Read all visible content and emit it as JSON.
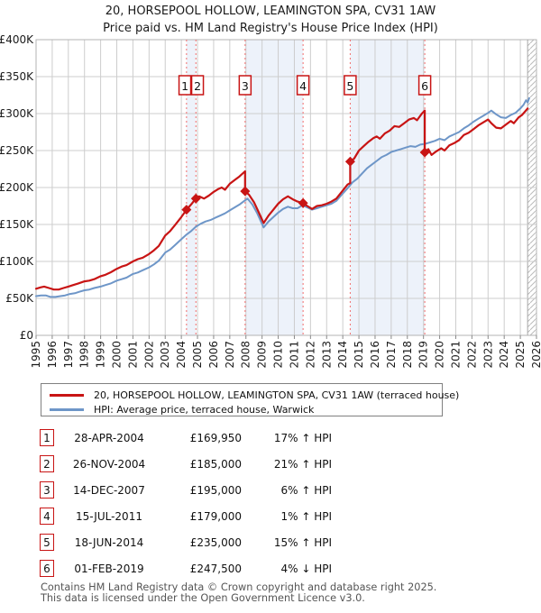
{
  "title": {
    "line1": "20, HORSEPOOL HOLLOW, LEAMINGTON SPA, CV31 1AW",
    "line2": "Price paid vs. HM Land Registry's House Price Index (HPI)"
  },
  "colors": {
    "property_line": "#c81414",
    "hpi_line": "#6e96c8",
    "band_fill": "#edf2fa",
    "dashed_line": "#f26d6d",
    "grid_line": "#cdcdcd",
    "plot_border": "#b3b3b3",
    "axis_text": "#1a1a1a",
    "box_border": "#c81414",
    "hatch_line": "#bbbbbb",
    "legend_border": "#808080",
    "footer_text": "#555555"
  },
  "chart_data": {
    "type": "line",
    "title": "20, HORSEPOOL HOLLOW, LEAMINGTON SPA, CV31 1AW — Price paid vs. HPI",
    "y_unit": "GBP thousands",
    "x_range": [
      1995,
      2026
    ],
    "y_range": [
      0,
      400
    ],
    "x_ticks": [
      1995,
      1996,
      1997,
      1998,
      1999,
      2000,
      2001,
      2002,
      2003,
      2004,
      2005,
      2006,
      2007,
      2008,
      2009,
      2010,
      2011,
      2012,
      2013,
      2014,
      2015,
      2016,
      2017,
      2018,
      2019,
      2020,
      2021,
      2022,
      2023,
      2024,
      2025,
      2026
    ],
    "y_ticks": [
      {
        "v": 0,
        "label": "£0"
      },
      {
        "v": 50,
        "label": "£50K"
      },
      {
        "v": 100,
        "label": "£100K"
      },
      {
        "v": 150,
        "label": "£150K"
      },
      {
        "v": 200,
        "label": "£200K"
      },
      {
        "v": 250,
        "label": "£250K"
      },
      {
        "v": 300,
        "label": "£300K"
      },
      {
        "v": 350,
        "label": "£350K"
      },
      {
        "v": 400,
        "label": "£400K"
      }
    ],
    "ownership_bands": [
      [
        2004.32,
        2004.9
      ],
      [
        2007.95,
        2011.54
      ],
      [
        2014.46,
        2019.08
      ]
    ],
    "future_start": 2025.45,
    "series": [
      {
        "name": "HPI: Average price, terraced house, Warwick",
        "color_key": "hpi_line",
        "width": 2,
        "points": [
          [
            1995.0,
            53
          ],
          [
            1995.3,
            54
          ],
          [
            1995.6,
            54
          ],
          [
            1995.9,
            52
          ],
          [
            1996.2,
            52
          ],
          [
            1996.5,
            53
          ],
          [
            1996.8,
            54
          ],
          [
            1997.1,
            56
          ],
          [
            1997.4,
            57
          ],
          [
            1997.7,
            59
          ],
          [
            1998.0,
            61
          ],
          [
            1998.3,
            62
          ],
          [
            1998.6,
            64
          ],
          [
            1999.0,
            66
          ],
          [
            1999.3,
            68
          ],
          [
            1999.6,
            70
          ],
          [
            2000.0,
            74
          ],
          [
            2000.3,
            76
          ],
          [
            2000.6,
            78
          ],
          [
            2001.0,
            83
          ],
          [
            2001.3,
            85
          ],
          [
            2001.6,
            88
          ],
          [
            2002.0,
            92
          ],
          [
            2002.3,
            96
          ],
          [
            2002.6,
            101
          ],
          [
            2003.0,
            112
          ],
          [
            2003.3,
            116
          ],
          [
            2003.6,
            122
          ],
          [
            2004.0,
            130
          ],
          [
            2004.3,
            136
          ],
          [
            2004.6,
            141
          ],
          [
            2004.9,
            147
          ],
          [
            2005.2,
            151
          ],
          [
            2005.5,
            154
          ],
          [
            2005.8,
            156
          ],
          [
            2006.1,
            159
          ],
          [
            2006.4,
            162
          ],
          [
            2006.7,
            165
          ],
          [
            2007.0,
            169
          ],
          [
            2007.3,
            173
          ],
          [
            2007.6,
            177
          ],
          [
            2007.9,
            182
          ],
          [
            2008.1,
            185
          ],
          [
            2008.4,
            177
          ],
          [
            2008.7,
            165
          ],
          [
            2009.1,
            146
          ],
          [
            2009.4,
            154
          ],
          [
            2009.7,
            160
          ],
          [
            2010.0,
            166
          ],
          [
            2010.3,
            171
          ],
          [
            2010.6,
            174
          ],
          [
            2010.9,
            172
          ],
          [
            2011.2,
            172
          ],
          [
            2011.5,
            176
          ],
          [
            2011.8,
            173
          ],
          [
            2012.1,
            170
          ],
          [
            2012.4,
            172
          ],
          [
            2012.7,
            174
          ],
          [
            2013.0,
            176
          ],
          [
            2013.3,
            178
          ],
          [
            2013.6,
            182
          ],
          [
            2014.0,
            192
          ],
          [
            2014.3,
            199
          ],
          [
            2014.6,
            207
          ],
          [
            2014.9,
            212
          ],
          [
            2015.2,
            219
          ],
          [
            2015.5,
            226
          ],
          [
            2015.8,
            231
          ],
          [
            2016.1,
            236
          ],
          [
            2016.4,
            241
          ],
          [
            2016.7,
            244
          ],
          [
            2017.0,
            248
          ],
          [
            2017.3,
            250
          ],
          [
            2017.6,
            252
          ],
          [
            2017.9,
            254
          ],
          [
            2018.2,
            256
          ],
          [
            2018.5,
            255
          ],
          [
            2018.8,
            258
          ],
          [
            2019.1,
            259
          ],
          [
            2019.4,
            261
          ],
          [
            2019.7,
            263
          ],
          [
            2020.0,
            266
          ],
          [
            2020.3,
            264
          ],
          [
            2020.6,
            269
          ],
          [
            2020.9,
            272
          ],
          [
            2021.2,
            275
          ],
          [
            2021.5,
            280
          ],
          [
            2021.8,
            284
          ],
          [
            2022.1,
            289
          ],
          [
            2022.4,
            293
          ],
          [
            2022.7,
            297
          ],
          [
            2023.0,
            301
          ],
          [
            2023.2,
            304
          ],
          [
            2023.5,
            299
          ],
          [
            2023.8,
            295
          ],
          [
            2024.1,
            294
          ],
          [
            2024.4,
            298
          ],
          [
            2024.7,
            301
          ],
          [
            2025.0,
            307
          ],
          [
            2025.2,
            312
          ],
          [
            2025.35,
            318
          ],
          [
            2025.45,
            315
          ],
          [
            2025.55,
            321
          ]
        ]
      },
      {
        "name": "20, HORSEPOOL HOLLOW, LEAMINGTON SPA, CV31 1AW (terraced house)",
        "color_key": "property_line",
        "width": 2.2,
        "points": [
          [
            1995.0,
            63
          ],
          [
            1995.3,
            65
          ],
          [
            1995.5,
            66
          ],
          [
            1995.8,
            64
          ],
          [
            1996.1,
            62
          ],
          [
            1996.4,
            62
          ],
          [
            1996.7,
            64
          ],
          [
            1997.0,
            66
          ],
          [
            1997.3,
            68
          ],
          [
            1997.6,
            70
          ],
          [
            1998.0,
            73
          ],
          [
            1998.3,
            74
          ],
          [
            1998.6,
            76
          ],
          [
            1999.0,
            80
          ],
          [
            1999.3,
            82
          ],
          [
            1999.6,
            85
          ],
          [
            2000.0,
            90
          ],
          [
            2000.3,
            93
          ],
          [
            2000.6,
            95
          ],
          [
            2001.0,
            100
          ],
          [
            2001.3,
            103
          ],
          [
            2001.6,
            105
          ],
          [
            2002.0,
            110
          ],
          [
            2002.3,
            115
          ],
          [
            2002.6,
            121
          ],
          [
            2003.0,
            135
          ],
          [
            2003.3,
            141
          ],
          [
            2003.6,
            149
          ],
          [
            2004.0,
            160
          ],
          [
            2004.32,
            169.95
          ],
          [
            2004.6,
            177
          ],
          [
            2004.9,
            185
          ],
          [
            2005.1,
            188
          ],
          [
            2005.4,
            185
          ],
          [
            2005.7,
            189
          ],
          [
            2006.0,
            194
          ],
          [
            2006.3,
            198
          ],
          [
            2006.5,
            200
          ],
          [
            2006.7,
            197
          ],
          [
            2007.0,
            205
          ],
          [
            2007.3,
            210
          ],
          [
            2007.6,
            215
          ],
          [
            2007.95,
            222
          ],
          [
            2007.95,
            195
          ],
          [
            2008.2,
            190
          ],
          [
            2008.5,
            180
          ],
          [
            2008.8,
            166
          ],
          [
            2009.1,
            152
          ],
          [
            2009.4,
            162
          ],
          [
            2009.7,
            170
          ],
          [
            2010.0,
            178
          ],
          [
            2010.3,
            184
          ],
          [
            2010.6,
            188
          ],
          [
            2010.9,
            184
          ],
          [
            2011.2,
            181
          ],
          [
            2011.54,
            179
          ],
          [
            2011.8,
            175
          ],
          [
            2012.1,
            171
          ],
          [
            2012.4,
            175
          ],
          [
            2012.7,
            176
          ],
          [
            2013.0,
            178
          ],
          [
            2013.3,
            181
          ],
          [
            2013.6,
            185
          ],
          [
            2014.0,
            196
          ],
          [
            2014.3,
            204
          ],
          [
            2014.46,
            206
          ],
          [
            2014.46,
            235
          ],
          [
            2014.7,
            239
          ],
          [
            2015.0,
            250
          ],
          [
            2015.3,
            256
          ],
          [
            2015.6,
            262
          ],
          [
            2015.9,
            267
          ],
          [
            2016.1,
            269
          ],
          [
            2016.3,
            266
          ],
          [
            2016.6,
            273
          ],
          [
            2016.9,
            277
          ],
          [
            2017.2,
            283
          ],
          [
            2017.5,
            282
          ],
          [
            2017.8,
            287
          ],
          [
            2018.1,
            292
          ],
          [
            2018.4,
            294
          ],
          [
            2018.6,
            291
          ],
          [
            2018.9,
            300
          ],
          [
            2019.08,
            304
          ],
          [
            2019.08,
            247.5
          ],
          [
            2019.3,
            252
          ],
          [
            2019.5,
            244
          ],
          [
            2019.8,
            249
          ],
          [
            2020.1,
            253
          ],
          [
            2020.3,
            250
          ],
          [
            2020.6,
            257
          ],
          [
            2020.9,
            260
          ],
          [
            2021.2,
            264
          ],
          [
            2021.5,
            271
          ],
          [
            2021.8,
            274
          ],
          [
            2022.1,
            279
          ],
          [
            2022.4,
            284
          ],
          [
            2022.7,
            288
          ],
          [
            2023.0,
            292
          ],
          [
            2023.2,
            287
          ],
          [
            2023.5,
            281
          ],
          [
            2023.8,
            280
          ],
          [
            2024.1,
            285
          ],
          [
            2024.4,
            290
          ],
          [
            2024.6,
            287
          ],
          [
            2024.9,
            295
          ],
          [
            2025.1,
            298
          ],
          [
            2025.3,
            303
          ],
          [
            2025.45,
            307
          ]
        ]
      }
    ],
    "transactions": [
      {
        "num": "1",
        "x": 2004.32,
        "price_k": 169.95
      },
      {
        "num": "2",
        "x": 2004.9,
        "price_k": 185
      },
      {
        "num": "3",
        "x": 2007.95,
        "price_k": 195
      },
      {
        "num": "4",
        "x": 2011.54,
        "price_k": 179
      },
      {
        "num": "5",
        "x": 2014.46,
        "price_k": 235
      },
      {
        "num": "6",
        "x": 2019.08,
        "price_k": 247.5
      }
    ],
    "legend_position": "below"
  },
  "legend": {
    "items": [
      {
        "label": "20, HORSEPOOL HOLLOW, LEAMINGTON SPA, CV31 1AW (terraced house)",
        "color_key": "property_line"
      },
      {
        "label": "HPI: Average price, terraced house, Warwick",
        "color_key": "hpi_line"
      }
    ]
  },
  "table": {
    "rows": [
      {
        "num": "1",
        "date": "28-APR-2004",
        "price": "£169,950",
        "delta": "17% ↑ HPI"
      },
      {
        "num": "2",
        "date": "26-NOV-2004",
        "price": "£185,000",
        "delta": "21% ↑ HPI"
      },
      {
        "num": "3",
        "date": "14-DEC-2007",
        "price": "£195,000",
        "delta": "6% ↑ HPI"
      },
      {
        "num": "4",
        "date": "15-JUL-2011",
        "price": "£179,000",
        "delta": "1% ↑ HPI"
      },
      {
        "num": "5",
        "date": "18-JUN-2014",
        "price": "£235,000",
        "delta": "15% ↑ HPI"
      },
      {
        "num": "6",
        "date": "01-FEB-2019",
        "price": "£247,500",
        "delta": "4% ↓ HPI"
      }
    ]
  },
  "footer": {
    "line1": "Contains HM Land Registry data © Crown copyright and database right 2025.",
    "line2": "This data is licensed under the Open Government Licence v3.0."
  }
}
